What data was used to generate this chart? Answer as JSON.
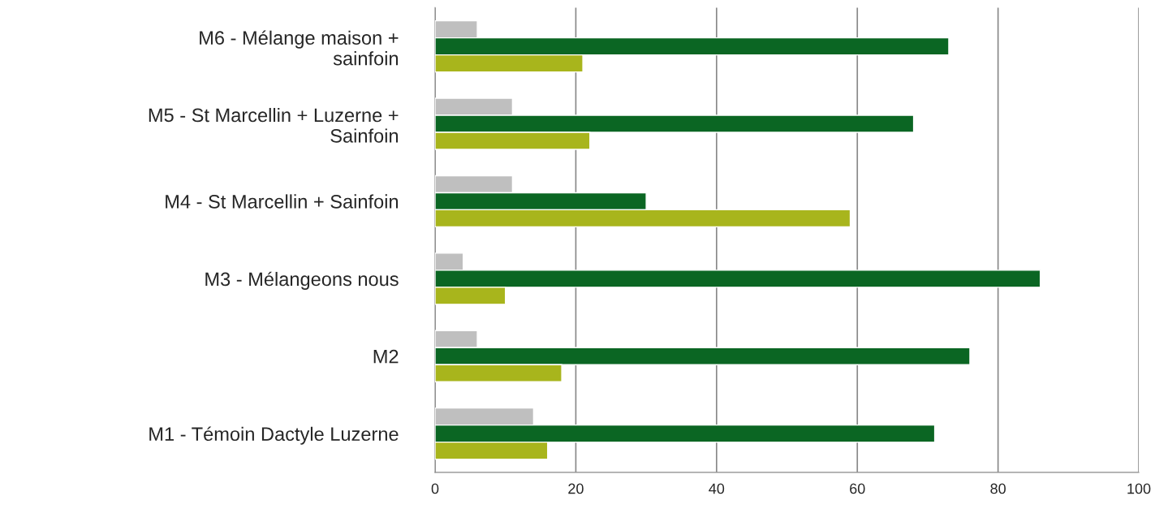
{
  "chart_data": {
    "type": "bar",
    "orientation": "horizontal",
    "categories": [
      "M6 - Mélange maison +\nsainfoin",
      "M5 - St Marcellin + Luzerne +\nSainfoin",
      "M4 - St Marcellin + Sainfoin",
      "M3 - Mélangeons nous",
      "M2",
      "M1 - Témoin Dactyle Luzerne"
    ],
    "series": [
      {
        "color": "#bfbfbf",
        "values": [
          6,
          11,
          11,
          4,
          6,
          14
        ]
      },
      {
        "color": "#0b6623",
        "values": [
          73,
          68,
          30,
          86,
          76,
          71
        ]
      },
      {
        "color": "#a8b51c",
        "values": [
          21,
          22,
          59,
          10,
          18,
          16
        ]
      }
    ],
    "xlim": [
      0,
      100
    ],
    "xticks": [
      0,
      20,
      40,
      60,
      80,
      100
    ],
    "grid": "x",
    "legend": false
  }
}
